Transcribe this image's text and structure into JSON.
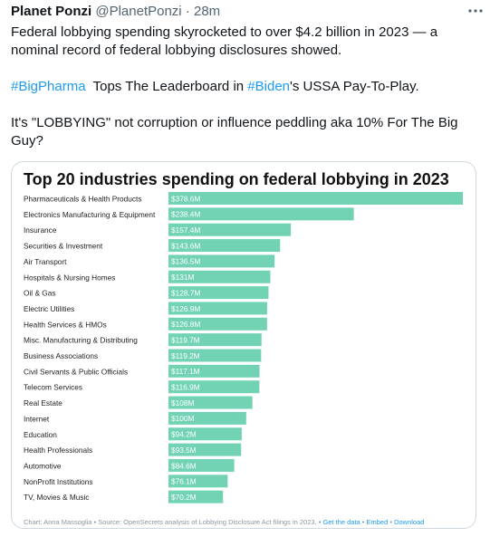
{
  "tweet": {
    "author_name": "Planet Ponzi",
    "author_handle": "@PlanetPonzi",
    "separator": "·",
    "time": "28m",
    "more_icon": "more-dots-icon",
    "paragraph1": "Federal lobbying spending skyrocketed to over $4.2 billion in 2023 — a nominal record of federal lobbying disclosures showed.",
    "hashtag1": "#BigPharma",
    "p2_mid": "  Tops The Leaderboard in ",
    "hashtag2": "#Biden",
    "p2_end": "'s USSA Pay-To-Play.",
    "paragraph3": "It's \"LOBBYING\" not corruption or influence peddling aka 10% For The Big Guy?"
  },
  "colors": {
    "bar": "#71d3b4",
    "hashtag": "#1d9bf0",
    "label_text": "#ffffff"
  },
  "chart_data": {
    "type": "bar",
    "orientation": "horizontal",
    "title": "Top 20 industries spending on federal lobbying in 2023",
    "categories": [
      "Pharmaceuticals & Health Products",
      "Electronics Manufacturing & Equipment",
      "Insurance",
      "Securities & Investment",
      "Air Transport",
      "Hospitals & Nursing Homes",
      "Oil & Gas",
      "Electric Utilities",
      "Health Services & HMOs",
      "Misc. Manufacturing & Distributing",
      "Business Associations",
      "Civil Servants & Public Officials",
      "Telecom Services",
      "Real Estate",
      "Internet",
      "Education",
      "Health Professionals",
      "Automotive",
      "NonProfit Institutions",
      "TV, Movies & Music"
    ],
    "values": [
      378.6,
      238.4,
      157.4,
      143.6,
      136.5,
      131,
      128.7,
      126.9,
      126.8,
      119.7,
      119.2,
      117.1,
      116.9,
      108,
      100,
      94.2,
      93.5,
      84.6,
      76.1,
      70.2
    ],
    "value_labels": [
      "$378.6M",
      "$238.4M",
      "$157.4M",
      "$143.6M",
      "$136.5M",
      "$131M",
      "$128.7M",
      "$126.9M",
      "$126.8M",
      "$119.7M",
      "$119.2M",
      "$117.1M",
      "$116.9M",
      "$108M",
      "$100M",
      "$94.2M",
      "$93.5M",
      "$84.6M",
      "$76.1M",
      "$70.2M"
    ],
    "xlim": [
      0,
      378.6
    ],
    "grid": false,
    "footer_text": "Chart: Anna Massoglia • Source: OpenSecrets analysis of Lobbying Disclosure Act filings in 2023. • ",
    "footer_links": [
      "Get the data",
      "Embed",
      "Download"
    ],
    "footer_sep": " • "
  }
}
